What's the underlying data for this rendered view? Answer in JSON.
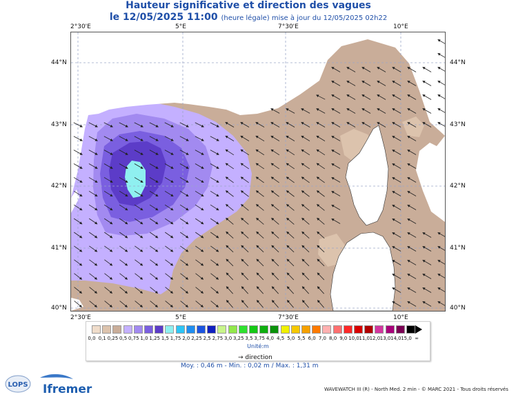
{
  "header": {
    "title": "Hauteur significative et direction des vagues",
    "date": "le 12/05/2025 11:00",
    "note": "(heure légale) mise à jour du 12/05/2025 02h22"
  },
  "axes": {
    "lon_top": [
      "2°30'E",
      "5°E",
      "7°30'E",
      "10°E"
    ],
    "lon_bottom": [
      "2°30'E",
      "5°E",
      "7°30'E",
      "10°E"
    ],
    "lat_left": [
      "44°N",
      "43°N",
      "42°N",
      "41°N",
      "40°N"
    ],
    "lat_right": [
      "44°N",
      "43°N",
      "42°N",
      "41°N",
      "40°N"
    ]
  },
  "legend": {
    "levels": [
      "0,0",
      "0,1",
      "0,25",
      "0,5",
      "0,75",
      "1,0",
      "1,25",
      "1,5",
      "1,75",
      "2,0",
      "2,25",
      "2,5",
      "2,75",
      "3,0",
      "3,25",
      "3,5",
      "3,75",
      "4,0",
      "4,5",
      "5,0",
      "5,5",
      "6,0",
      "7,0",
      "8,0",
      "9,0",
      "10,0",
      "11,0",
      "12,0",
      "13,0",
      "14,0",
      "15,0"
    ],
    "colors": [
      "#efdcca",
      "#dcc3ad",
      "#c9ad99",
      "#c4b0ff",
      "#a28af0",
      "#7a5fe0",
      "#5c3cc8",
      "#8ff0f0",
      "#2ec5f5",
      "#1f8ef0",
      "#1c55e0",
      "#1020c0",
      "#c8f58a",
      "#92e84a",
      "#2ee02e",
      "#14c814",
      "#0eae0e",
      "#0a920a",
      "#f0f000",
      "#f5c800",
      "#f5a000",
      "#ff7a00",
      "#ffb0b0",
      "#ff7070",
      "#ff2828",
      "#d80000",
      "#b00000",
      "#d3369f",
      "#a8007a",
      "#7a0054",
      "#000000"
    ],
    "unit": "Unité:m",
    "more_symbol": "∞",
    "direction_label": "direction",
    "direction_arrow": "→"
  },
  "stats": {
    "text": "Moy. : 0,46 m    -    Min. : 0,02 m / Max. : 1,31 m"
  },
  "footer": {
    "credit": "WAVEWATCH III (R) - North Med. 2 min - © MARC 2021 - Tous droits réservés",
    "logo_lops": "LOPS",
    "logo_ifremer": "Ifremer"
  },
  "map_colors": {
    "sea_low": "#c9ad99",
    "sea_min": "#dcc3ad",
    "sea_mid": "#c4b0ff",
    "sea_mid2": "#a28af0",
    "sea_high": "#7a5fe0",
    "sea_higher": "#5c3cc8",
    "sea_peak": "#8ff0f0",
    "land": "#ffffff",
    "grid": "#9aa6c8",
    "arrow": "#222222"
  }
}
